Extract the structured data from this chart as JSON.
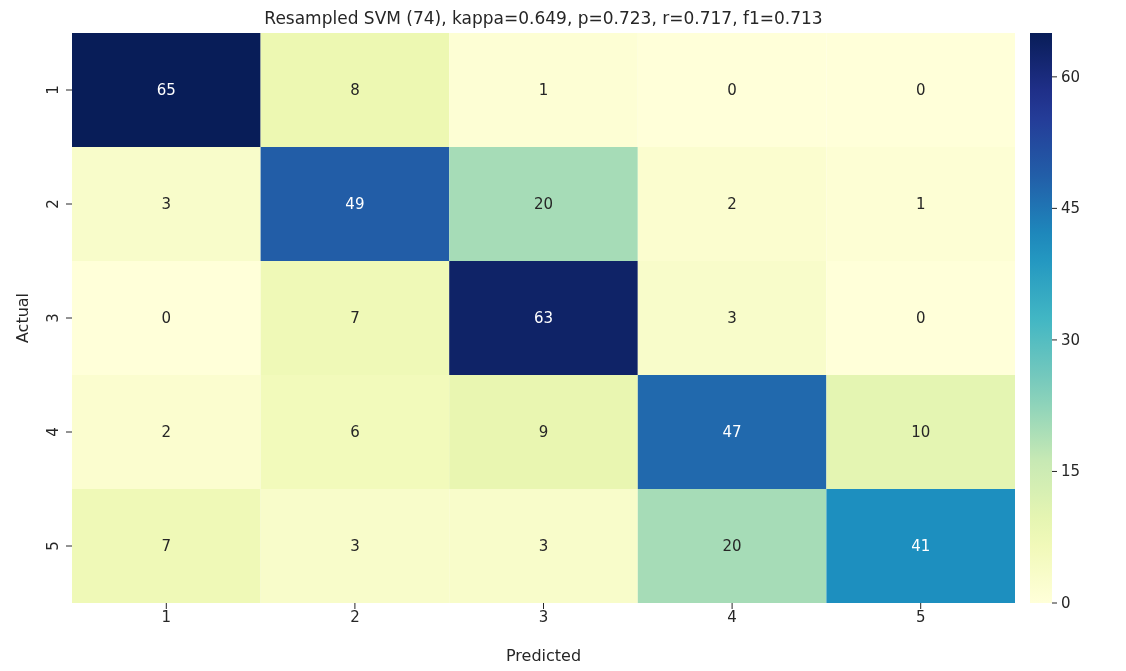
{
  "chart_data": {
    "type": "heatmap",
    "title": "Resampled SVM (74), kappa=0.649, p=0.723, r=0.717, f1=0.713",
    "xlabel": "Predicted",
    "ylabel": "Actual",
    "categories": [
      "1",
      "2",
      "3",
      "4",
      "5"
    ],
    "y_categories": [
      "1",
      "2",
      "3",
      "4",
      "5"
    ],
    "cells": [
      [
        65,
        8,
        1,
        0,
        0
      ],
      [
        3,
        49,
        20,
        2,
        1
      ],
      [
        0,
        7,
        63,
        3,
        0
      ],
      [
        2,
        6,
        9,
        47,
        10
      ],
      [
        7,
        3,
        3,
        20,
        41
      ]
    ],
    "clim": [
      0,
      65
    ],
    "cticks": [
      0,
      15,
      30,
      45,
      60
    ],
    "data_labels": true
  }
}
